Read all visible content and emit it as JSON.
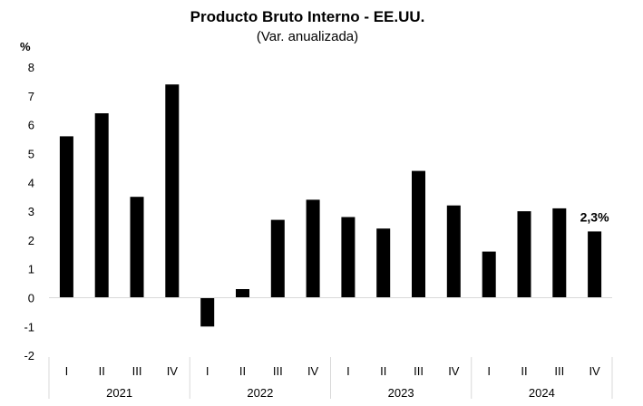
{
  "chart_data": {
    "type": "bar",
    "title": "Producto Bruto Interno - EE.UU.",
    "subtitle": "(Var. anualizada)",
    "ylabel": "%",
    "ylim": [
      -2,
      8
    ],
    "yticks": [
      -2,
      -1,
      0,
      1,
      2,
      3,
      4,
      5,
      6,
      7,
      8
    ],
    "grid": false,
    "legend": "none",
    "bar_color": "#000000",
    "categories": [
      "I",
      "II",
      "III",
      "IV",
      "I",
      "II",
      "III",
      "IV",
      "I",
      "II",
      "III",
      "IV",
      "I",
      "II",
      "III",
      "IV"
    ],
    "groups": [
      {
        "label": "2021",
        "count": 4
      },
      {
        "label": "2022",
        "count": 4
      },
      {
        "label": "2023",
        "count": 4
      },
      {
        "label": "2024",
        "count": 4
      }
    ],
    "values": [
      5.6,
      6.4,
      3.5,
      7.4,
      -1.0,
      0.3,
      2.7,
      3.4,
      2.8,
      2.4,
      4.4,
      3.2,
      1.6,
      3.0,
      3.1,
      2.3
    ],
    "annotations": [
      {
        "index": 15,
        "text": "2,3%"
      }
    ]
  }
}
